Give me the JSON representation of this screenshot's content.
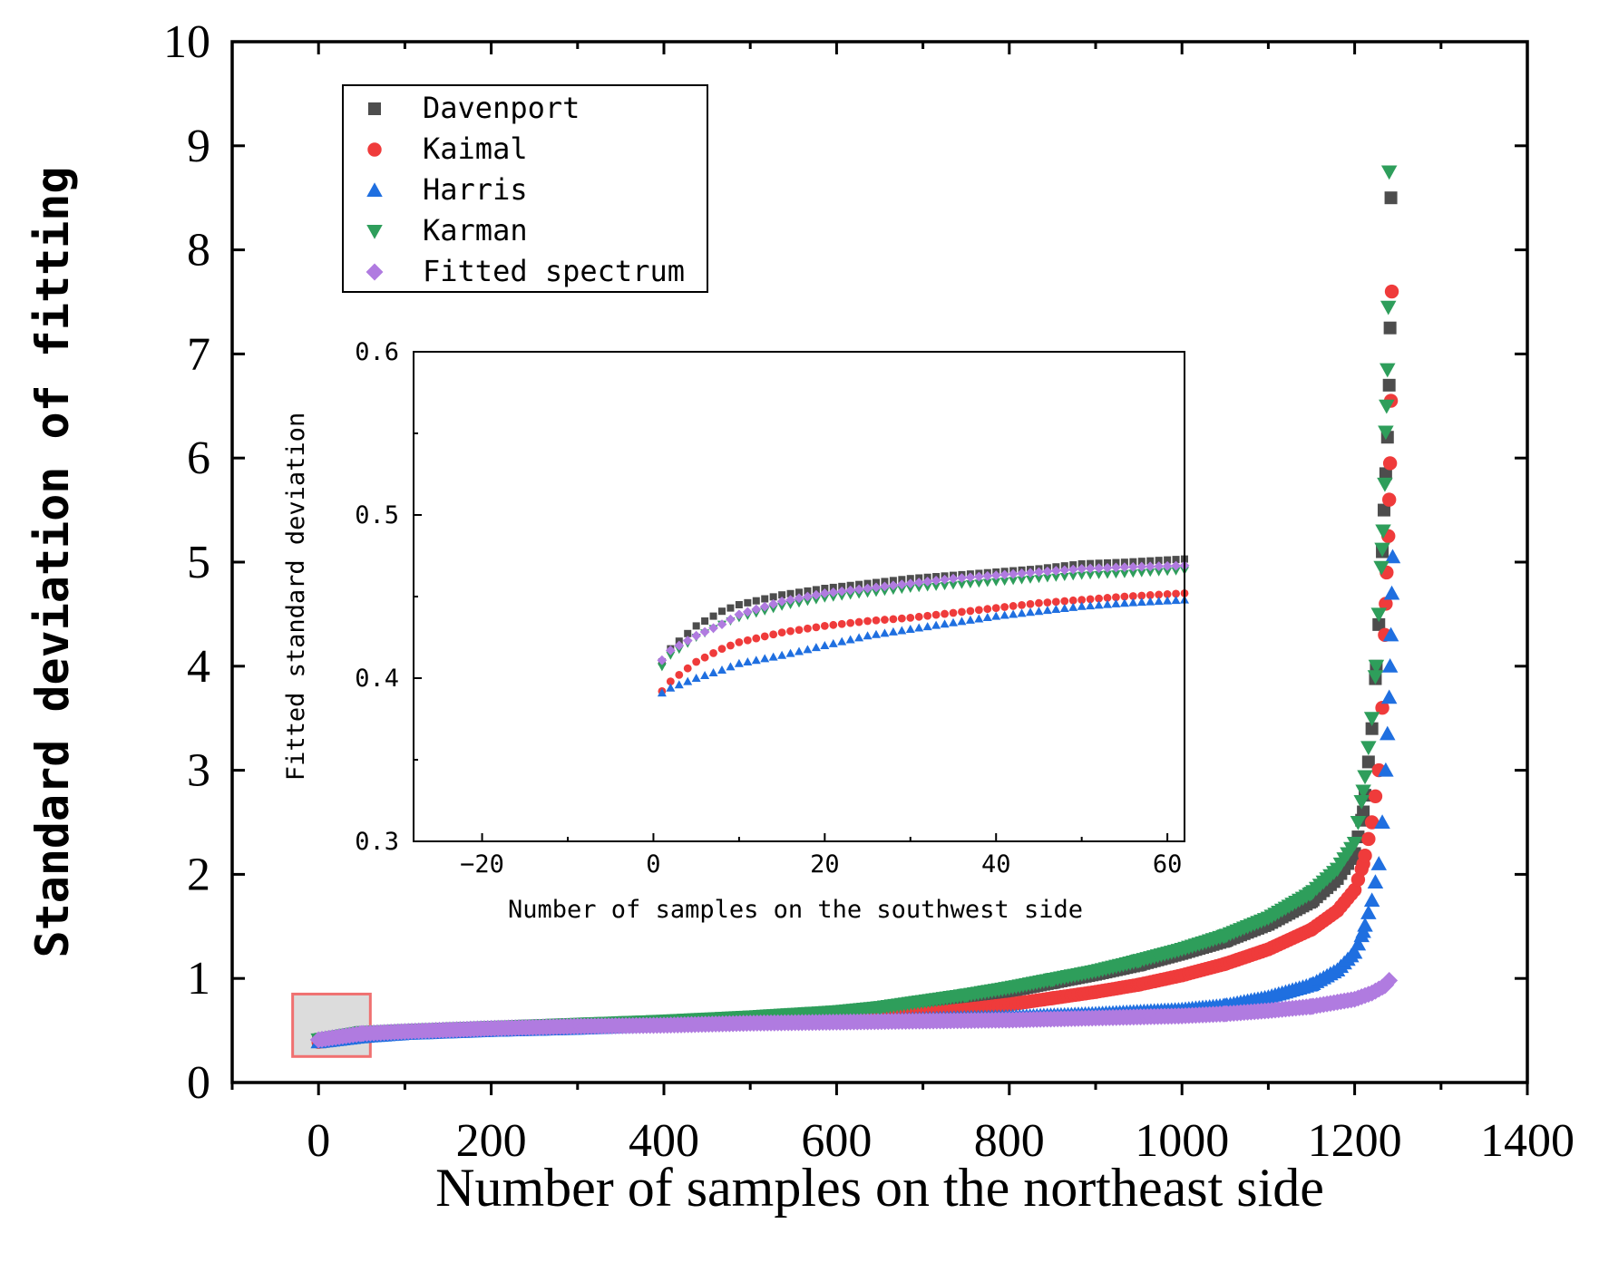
{
  "colors": {
    "davenport": "#4d4d4d",
    "kaimal": "#ef3b3b",
    "harris": "#1f6fe0",
    "karman": "#2e9e5b",
    "fitted": "#b07be0",
    "zoom_box_border": "#f07070",
    "zoom_box_fill": "#dcdcdc"
  },
  "chart_data": [
    {
      "id": "main",
      "type": "scatter",
      "title": "",
      "xlabel": "Number of samples on the northeast side",
      "ylabel": "Standard deviation of fitting",
      "xlim": [
        -100,
        1400
      ],
      "ylim": [
        0,
        10
      ],
      "x_ticks": [
        0,
        200,
        400,
        600,
        800,
        1000,
        1200,
        1400
      ],
      "y_ticks": [
        0,
        1,
        2,
        3,
        4,
        5,
        6,
        7,
        8,
        9,
        10
      ],
      "x_tick_labels": [
        "0",
        "200",
        "400",
        "600",
        "800",
        "1000",
        "1200",
        "1400"
      ],
      "y_tick_labels": [
        "0",
        "1",
        "2",
        "3",
        "4",
        "5",
        "6",
        "7",
        "8",
        "9",
        "10"
      ],
      "legend_position": "top-left",
      "zoom_box": {
        "x": [
          -30,
          60
        ],
        "y": [
          0.25,
          0.85
        ]
      },
      "series": [
        {
          "name": "Davenport",
          "marker": "square",
          "color_key": "davenport",
          "points": [
            [
              0,
              0.41
            ],
            [
              50,
              0.47
            ],
            [
              100,
              0.49
            ],
            [
              200,
              0.52
            ],
            [
              300,
              0.55
            ],
            [
              400,
              0.58
            ],
            [
              500,
              0.62
            ],
            [
              600,
              0.67
            ],
            [
              650,
              0.7
            ],
            [
              700,
              0.76
            ],
            [
              750,
              0.82
            ],
            [
              800,
              0.88
            ],
            [
              850,
              0.96
            ],
            [
              900,
              1.04
            ],
            [
              950,
              1.13
            ],
            [
              1000,
              1.24
            ],
            [
              1050,
              1.36
            ],
            [
              1100,
              1.52
            ],
            [
              1150,
              1.74
            ],
            [
              1180,
              1.96
            ],
            [
              1200,
              2.2
            ],
            [
              1210,
              2.6
            ],
            [
              1220,
              3.4
            ],
            [
              1225,
              4.0
            ],
            [
              1228,
              4.4
            ],
            [
              1232,
              5.1
            ],
            [
              1234,
              5.5
            ],
            [
              1236,
              5.85
            ],
            [
              1238,
              6.2
            ],
            [
              1240,
              6.7
            ],
            [
              1241,
              7.25
            ],
            [
              1242,
              8.5
            ]
          ]
        },
        {
          "name": "Kaimal",
          "marker": "circle",
          "color_key": "kaimal",
          "points": [
            [
              0,
              0.39
            ],
            [
              50,
              0.45
            ],
            [
              100,
              0.48
            ],
            [
              200,
              0.51
            ],
            [
              300,
              0.54
            ],
            [
              400,
              0.56
            ],
            [
              500,
              0.59
            ],
            [
              600,
              0.62
            ],
            [
              700,
              0.66
            ],
            [
              750,
              0.7
            ],
            [
              800,
              0.75
            ],
            [
              850,
              0.81
            ],
            [
              900,
              0.87
            ],
            [
              950,
              0.94
            ],
            [
              1000,
              1.03
            ],
            [
              1050,
              1.14
            ],
            [
              1100,
              1.28
            ],
            [
              1150,
              1.47
            ],
            [
              1180,
              1.65
            ],
            [
              1200,
              1.85
            ],
            [
              1210,
              2.1
            ],
            [
              1220,
              2.5
            ],
            [
              1228,
              3.0
            ],
            [
              1232,
              3.6
            ],
            [
              1235,
              4.3
            ],
            [
              1237,
              4.9
            ],
            [
              1239,
              5.25
            ],
            [
              1240,
              5.6
            ],
            [
              1241,
              5.95
            ],
            [
              1242,
              6.55
            ],
            [
              1243,
              7.6
            ]
          ]
        },
        {
          "name": "Harris",
          "marker": "triangle-up",
          "color_key": "harris",
          "points": [
            [
              0,
              0.39
            ],
            [
              50,
              0.44
            ],
            [
              100,
              0.47
            ],
            [
              200,
              0.5
            ],
            [
              300,
              0.52
            ],
            [
              400,
              0.55
            ],
            [
              500,
              0.57
            ],
            [
              600,
              0.59
            ],
            [
              700,
              0.61
            ],
            [
              800,
              0.63
            ],
            [
              900,
              0.66
            ],
            [
              1000,
              0.7
            ],
            [
              1050,
              0.74
            ],
            [
              1100,
              0.82
            ],
            [
              1150,
              0.94
            ],
            [
              1180,
              1.08
            ],
            [
              1200,
              1.25
            ],
            [
              1210,
              1.45
            ],
            [
              1220,
              1.75
            ],
            [
              1228,
              2.1
            ],
            [
              1232,
              2.5
            ],
            [
              1236,
              3.0
            ],
            [
              1238,
              3.35
            ],
            [
              1240,
              3.7
            ],
            [
              1241,
              4.0
            ],
            [
              1242,
              4.3
            ],
            [
              1243,
              4.7
            ],
            [
              1244,
              5.05
            ]
          ]
        },
        {
          "name": "Karman",
          "marker": "triangle-down",
          "color_key": "karman",
          "points": [
            [
              0,
              0.41
            ],
            [
              50,
              0.48
            ],
            [
              100,
              0.5
            ],
            [
              200,
              0.53
            ],
            [
              300,
              0.56
            ],
            [
              400,
              0.59
            ],
            [
              500,
              0.63
            ],
            [
              600,
              0.68
            ],
            [
              650,
              0.72
            ],
            [
              700,
              0.78
            ],
            [
              750,
              0.84
            ],
            [
              800,
              0.91
            ],
            [
              850,
              0.99
            ],
            [
              900,
              1.07
            ],
            [
              950,
              1.17
            ],
            [
              1000,
              1.28
            ],
            [
              1050,
              1.41
            ],
            [
              1100,
              1.58
            ],
            [
              1150,
              1.82
            ],
            [
              1180,
              2.05
            ],
            [
              1200,
              2.3
            ],
            [
              1210,
              2.8
            ],
            [
              1220,
              3.5
            ],
            [
              1225,
              4.0
            ],
            [
              1228,
              4.5
            ],
            [
              1231,
              4.95
            ],
            [
              1233,
              5.3
            ],
            [
              1235,
              5.75
            ],
            [
              1236,
              6.25
            ],
            [
              1237,
              6.5
            ],
            [
              1238,
              6.85
            ],
            [
              1239,
              7.45
            ],
            [
              1240,
              8.75
            ]
          ]
        },
        {
          "name": "Fitted spectrum",
          "marker": "diamond",
          "color_key": "fitted",
          "points": [
            [
              0,
              0.41
            ],
            [
              50,
              0.47
            ],
            [
              100,
              0.49
            ],
            [
              200,
              0.52
            ],
            [
              300,
              0.54
            ],
            [
              400,
              0.55
            ],
            [
              500,
              0.57
            ],
            [
              600,
              0.58
            ],
            [
              700,
              0.59
            ],
            [
              800,
              0.6
            ],
            [
              900,
              0.62
            ],
            [
              1000,
              0.64
            ],
            [
              1050,
              0.66
            ],
            [
              1100,
              0.69
            ],
            [
              1150,
              0.73
            ],
            [
              1200,
              0.8
            ],
            [
              1220,
              0.86
            ],
            [
              1235,
              0.93
            ],
            [
              1240,
              0.98
            ]
          ]
        }
      ]
    },
    {
      "id": "inset",
      "type": "scatter",
      "title": "",
      "xlabel": "Number of samples on the southwest side",
      "ylabel": "Fitted standard deviation",
      "xlim": [
        -28,
        62
      ],
      "ylim": [
        0.3,
        0.6
      ],
      "x_ticks": [
        -20,
        0,
        20,
        40,
        60
      ],
      "y_ticks": [
        0.3,
        0.4,
        0.5,
        0.6
      ],
      "x_tick_labels": [
        "−20",
        "0",
        "20",
        "40",
        "60"
      ],
      "y_tick_labels": [
        "0.3",
        "0.4",
        "0.5",
        "0.6"
      ],
      "series": [
        {
          "name": "Davenport",
          "marker": "square",
          "color_key": "davenport",
          "points": [
            [
              1,
              0.41
            ],
            [
              2,
              0.418
            ],
            [
              5,
              0.432
            ],
            [
              8,
              0.441
            ],
            [
              10,
              0.445
            ],
            [
              15,
              0.451
            ],
            [
              20,
              0.455
            ],
            [
              25,
              0.458
            ],
            [
              30,
              0.461
            ],
            [
              35,
              0.463
            ],
            [
              40,
              0.465
            ],
            [
              45,
              0.467
            ],
            [
              50,
              0.47
            ],
            [
              55,
              0.471
            ],
            [
              62,
              0.473
            ]
          ]
        },
        {
          "name": "Kaimal",
          "marker": "circle",
          "color_key": "kaimal",
          "points": [
            [
              1,
              0.392
            ],
            [
              2,
              0.398
            ],
            [
              5,
              0.41
            ],
            [
              8,
              0.418
            ],
            [
              10,
              0.422
            ],
            [
              15,
              0.428
            ],
            [
              20,
              0.432
            ],
            [
              25,
              0.435
            ],
            [
              30,
              0.437
            ],
            [
              35,
              0.44
            ],
            [
              40,
              0.443
            ],
            [
              45,
              0.446
            ],
            [
              50,
              0.448
            ],
            [
              55,
              0.45
            ],
            [
              62,
              0.452
            ]
          ]
        },
        {
          "name": "Harris",
          "marker": "triangle-up",
          "color_key": "harris",
          "points": [
            [
              1,
              0.391
            ],
            [
              2,
              0.394
            ],
            [
              5,
              0.4
            ],
            [
              8,
              0.405
            ],
            [
              10,
              0.409
            ],
            [
              15,
              0.414
            ],
            [
              20,
              0.42
            ],
            [
              25,
              0.426
            ],
            [
              30,
              0.43
            ],
            [
              35,
              0.434
            ],
            [
              40,
              0.438
            ],
            [
              45,
              0.441
            ],
            [
              50,
              0.444
            ],
            [
              55,
              0.446
            ],
            [
              62,
              0.448
            ]
          ]
        },
        {
          "name": "Karman",
          "marker": "triangle-down",
          "color_key": "karman",
          "points": [
            [
              1,
              0.407
            ],
            [
              2,
              0.414
            ],
            [
              5,
              0.425
            ],
            [
              8,
              0.433
            ],
            [
              10,
              0.437
            ],
            [
              15,
              0.444
            ],
            [
              20,
              0.449
            ],
            [
              25,
              0.452
            ],
            [
              30,
              0.455
            ],
            [
              35,
              0.457
            ],
            [
              40,
              0.459
            ],
            [
              45,
              0.461
            ],
            [
              50,
              0.463
            ],
            [
              55,
              0.464
            ],
            [
              62,
              0.466
            ]
          ]
        },
        {
          "name": "Fitted spectrum",
          "marker": "diamond",
          "color_key": "fitted",
          "points": [
            [
              1,
              0.411
            ],
            [
              2,
              0.417
            ],
            [
              5,
              0.426
            ],
            [
              8,
              0.433
            ],
            [
              10,
              0.439
            ],
            [
              15,
              0.447
            ],
            [
              20,
              0.452
            ],
            [
              25,
              0.455
            ],
            [
              30,
              0.458
            ],
            [
              35,
              0.461
            ],
            [
              40,
              0.463
            ],
            [
              45,
              0.465
            ],
            [
              50,
              0.467
            ],
            [
              55,
              0.468
            ],
            [
              62,
              0.469
            ]
          ]
        }
      ]
    }
  ]
}
